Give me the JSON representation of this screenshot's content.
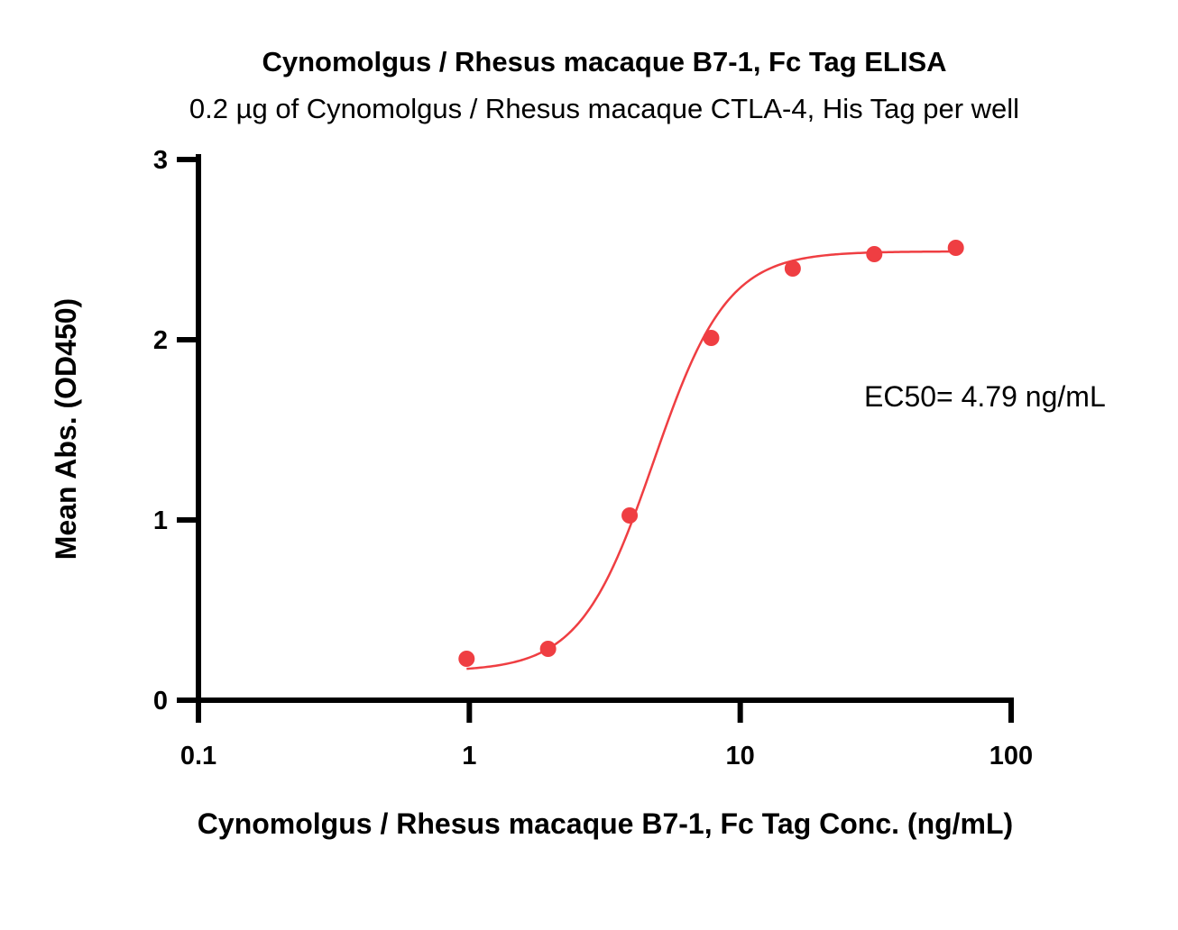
{
  "chart_data": {
    "type": "scatter",
    "title": "Cynomolgus / Rhesus macaque B7-1, Fc Tag ELISA",
    "subtitle": "0.2 µg of Cynomolgus / Rhesus macaque CTLA-4, His Tag per well",
    "xlabel": "Cynomolgus / Rhesus macaque B7-1, Fc Tag Conc. (ng/mL)",
    "ylabel": "Mean Abs. (OD450)",
    "x_scale": "log",
    "xlim": [
      0.1,
      100
    ],
    "ylim": [
      0,
      3
    ],
    "x_ticks": [
      0.1,
      1,
      10,
      100
    ],
    "x_tick_labels": [
      "0.1",
      "1",
      "10",
      "100"
    ],
    "y_ticks": [
      0,
      1,
      2,
      3
    ],
    "y_tick_labels": [
      "0",
      "1",
      "2",
      "3"
    ],
    "grid": false,
    "color": "#ef3e42",
    "series": [
      {
        "x": [
          0.977,
          1.953,
          3.906,
          7.813,
          15.625,
          31.25,
          62.5
        ],
        "y": [
          0.23,
          0.285,
          1.025,
          2.01,
          2.395,
          2.475,
          2.51
        ]
      }
    ],
    "fit_curve": {
      "type": "4PL",
      "bottom": 0.16,
      "top": 2.49,
      "ec50": 4.79,
      "hill": 3.2,
      "x_range": [
        0.977,
        62.5
      ]
    },
    "annotation": "EC50= 4.79 ng/mL"
  }
}
